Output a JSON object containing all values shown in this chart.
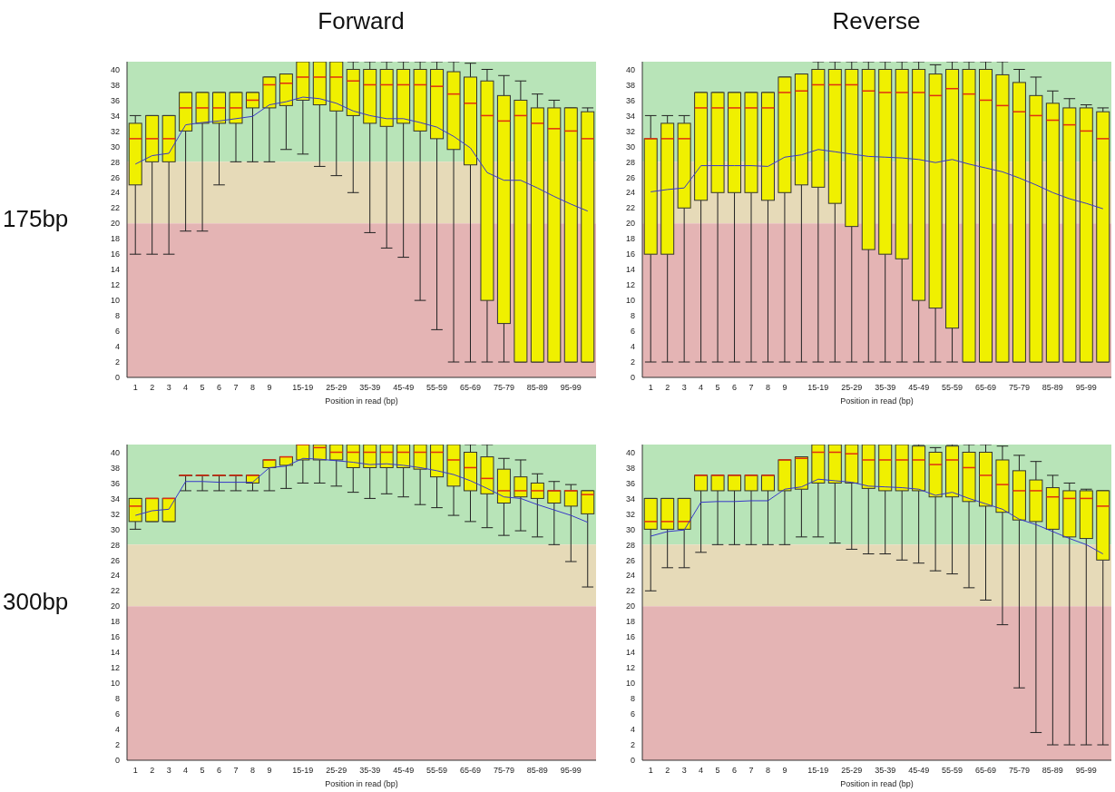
{
  "chart_data": [
    {
      "type": "box",
      "title": "Forward",
      "annotations": [
        "175bp"
      ],
      "xlabel": "Position in read (bp)",
      "categories": [
        "1",
        "2",
        "3",
        "4",
        "5",
        "6",
        "7",
        "8",
        "9",
        null,
        "15-19",
        null,
        "25-29",
        null,
        "35-39",
        null,
        "45-49",
        null,
        "55-59",
        null,
        "65-69",
        null,
        "75-79",
        null,
        "85-89",
        null,
        "95-99",
        null
      ],
      "ylim": [
        0,
        41
      ],
      "yticks": [
        0,
        2,
        4,
        6,
        8,
        10,
        12,
        14,
        16,
        18,
        20,
        22,
        24,
        26,
        28,
        30,
        32,
        34,
        36,
        38,
        40
      ],
      "bands": [
        {
          "axis": "y",
          "from": 28,
          "to": 41,
          "color": "#b8e4b8"
        },
        {
          "axis": "y",
          "from": 20,
          "to": 28,
          "color": "#e6dab8"
        },
        {
          "axis": "y",
          "from": 0,
          "to": 20,
          "color": "#e4b4b4"
        }
      ],
      "series": [
        {
          "type": "box",
          "color": "#f0f000",
          "boxes": [
            {
              "low": 16,
              "q1": 25,
              "median": 31,
              "q3": 33,
              "high": 34
            },
            {
              "low": 16,
              "q1": 28,
              "median": 31,
              "q3": 34,
              "high": 34
            },
            {
              "low": 16,
              "q1": 28,
              "median": 31,
              "q3": 34,
              "high": 34
            },
            {
              "low": 19,
              "q1": 32,
              "median": 35,
              "q3": 37,
              "high": 37
            },
            {
              "low": 19,
              "q1": 33,
              "median": 35,
              "q3": 37,
              "high": 37
            },
            {
              "low": 25,
              "q1": 33,
              "median": 35,
              "q3": 37,
              "high": 37
            },
            {
              "low": 28,
              "q1": 33,
              "median": 35,
              "q3": 37,
              "high": 37
            },
            {
              "low": 28,
              "q1": 35,
              "median": 36,
              "q3": 37,
              "high": 37
            },
            {
              "low": 28,
              "q1": 35,
              "median": 38,
              "q3": 39,
              "high": 39
            },
            {
              "low": 29.6,
              "q1": 35.3,
              "median": 38.2,
              "q3": 39.4,
              "high": 39.4
            },
            {
              "low": 29,
              "q1": 36,
              "median": 39,
              "q3": 41,
              "high": 41
            },
            {
              "low": 27.4,
              "q1": 35.4,
              "median": 39,
              "q3": 41,
              "high": 41
            },
            {
              "low": 26.2,
              "q1": 34.6,
              "median": 39,
              "q3": 41,
              "high": 41
            },
            {
              "low": 24,
              "q1": 34,
              "median": 38.5,
              "q3": 40,
              "high": 41
            },
            {
              "low": 18.8,
              "q1": 33,
              "median": 38,
              "q3": 40,
              "high": 41
            },
            {
              "low": 16.8,
              "q1": 32.6,
              "median": 38,
              "q3": 40,
              "high": 41
            },
            {
              "low": 15.6,
              "q1": 33,
              "median": 38,
              "q3": 40,
              "high": 41
            },
            {
              "low": 10,
              "q1": 32,
              "median": 38,
              "q3": 40,
              "high": 41
            },
            {
              "low": 6.2,
              "q1": 31,
              "median": 37.8,
              "q3": 40,
              "high": 41
            },
            {
              "low": 2,
              "q1": 29.6,
              "median": 36.8,
              "q3": 39.7,
              "high": 41
            },
            {
              "low": 2,
              "q1": 27.6,
              "median": 35.6,
              "q3": 39,
              "high": 40.8
            },
            {
              "low": 2,
              "q1": 10,
              "median": 34,
              "q3": 38.5,
              "high": 40
            },
            {
              "low": 2,
              "q1": 7,
              "median": 33.3,
              "q3": 36.6,
              "high": 39.2
            },
            {
              "low": 2,
              "q1": 2,
              "median": 34,
              "q3": 36,
              "high": 38.5
            },
            {
              "low": 2,
              "q1": 2,
              "median": 33,
              "q3": 35,
              "high": 36.8
            },
            {
              "low": 2,
              "q1": 2,
              "median": 32.3,
              "q3": 35,
              "high": 36
            },
            {
              "low": 2,
              "q1": 2,
              "median": 32,
              "q3": 35,
              "high": 35
            },
            {
              "low": 2,
              "q1": 2,
              "median": 31,
              "q3": 34.5,
              "high": 35
            }
          ]
        },
        {
          "type": "line",
          "color": "#3838c8",
          "values": [
            27.7,
            28.8,
            29.1,
            32.8,
            33.1,
            33.3,
            33.6,
            33.9,
            35.4,
            35.8,
            36.4,
            36.2,
            35.6,
            34.6,
            34.0,
            33.6,
            33.6,
            33.1,
            32.5,
            31.3,
            29.8,
            26.6,
            25.6,
            25.6,
            24.6,
            23.5,
            22.5,
            21.6
          ]
        }
      ]
    },
    {
      "type": "box",
      "title": "Reverse",
      "xlabel": "Position in read (bp)",
      "categories": [
        "1",
        "2",
        "3",
        "4",
        "5",
        "6",
        "7",
        "8",
        "9",
        null,
        "15-19",
        null,
        "25-29",
        null,
        "35-39",
        null,
        "45-49",
        null,
        "55-59",
        null,
        "65-69",
        null,
        "75-79",
        null,
        "85-89",
        null,
        "95-99",
        null
      ],
      "ylim": [
        0,
        41
      ],
      "yticks": [
        0,
        2,
        4,
        6,
        8,
        10,
        12,
        14,
        16,
        18,
        20,
        22,
        24,
        26,
        28,
        30,
        32,
        34,
        36,
        38,
        40
      ],
      "bands": [
        {
          "axis": "y",
          "from": 28,
          "to": 41,
          "color": "#b8e4b8"
        },
        {
          "axis": "y",
          "from": 20,
          "to": 28,
          "color": "#e6dab8"
        },
        {
          "axis": "y",
          "from": 0,
          "to": 20,
          "color": "#e4b4b4"
        }
      ],
      "series": [
        {
          "type": "box",
          "color": "#f0f000",
          "boxes": [
            {
              "low": 2,
              "q1": 16,
              "median": 31,
              "q3": 31,
              "high": 34
            },
            {
              "low": 2,
              "q1": 16,
              "median": 31,
              "q3": 33,
              "high": 34
            },
            {
              "low": 2,
              "q1": 22,
              "median": 31,
              "q3": 33,
              "high": 34
            },
            {
              "low": 2,
              "q1": 23,
              "median": 35,
              "q3": 37,
              "high": 37
            },
            {
              "low": 2,
              "q1": 24,
              "median": 35,
              "q3": 37,
              "high": 37
            },
            {
              "low": 2,
              "q1": 24,
              "median": 35,
              "q3": 37,
              "high": 37
            },
            {
              "low": 2,
              "q1": 24,
              "median": 35,
              "q3": 37,
              "high": 37
            },
            {
              "low": 2,
              "q1": 23,
              "median": 35,
              "q3": 37,
              "high": 37
            },
            {
              "low": 2,
              "q1": 24,
              "median": 37,
              "q3": 39,
              "high": 39
            },
            {
              "low": 2,
              "q1": 25,
              "median": 37.2,
              "q3": 39.4,
              "high": 39.4
            },
            {
              "low": 2,
              "q1": 24.7,
              "median": 38,
              "q3": 40,
              "high": 41
            },
            {
              "low": 2,
              "q1": 22.6,
              "median": 38,
              "q3": 40,
              "high": 41
            },
            {
              "low": 2,
              "q1": 19.6,
              "median": 38,
              "q3": 40,
              "high": 41
            },
            {
              "low": 2,
              "q1": 16.6,
              "median": 37.2,
              "q3": 40,
              "high": 41
            },
            {
              "low": 2,
              "q1": 16,
              "median": 37,
              "q3": 40,
              "high": 41
            },
            {
              "low": 2,
              "q1": 15.4,
              "median": 37,
              "q3": 40,
              "high": 41
            },
            {
              "low": 2,
              "q1": 10,
              "median": 37,
              "q3": 40,
              "high": 41
            },
            {
              "low": 2,
              "q1": 9,
              "median": 36.6,
              "q3": 39.4,
              "high": 40.6
            },
            {
              "low": 2,
              "q1": 6.4,
              "median": 37.5,
              "q3": 40,
              "high": 41
            },
            {
              "low": 2,
              "q1": 2,
              "median": 36.8,
              "q3": 40,
              "high": 41
            },
            {
              "low": 2,
              "q1": 2,
              "median": 36,
              "q3": 40,
              "high": 41
            },
            {
              "low": 2,
              "q1": 2,
              "median": 35.3,
              "q3": 39.3,
              "high": 41
            },
            {
              "low": 2,
              "q1": 2,
              "median": 34.5,
              "q3": 38.3,
              "high": 40
            },
            {
              "low": 2,
              "q1": 2,
              "median": 34,
              "q3": 36.6,
              "high": 39
            },
            {
              "low": 2,
              "q1": 2,
              "median": 33.4,
              "q3": 35.6,
              "high": 37.2
            },
            {
              "low": 2,
              "q1": 2,
              "median": 32.8,
              "q3": 35,
              "high": 36.2
            },
            {
              "low": 2,
              "q1": 2,
              "median": 32,
              "q3": 35,
              "high": 35.4
            },
            {
              "low": 2,
              "q1": 2,
              "median": 31,
              "q3": 34.5,
              "high": 35
            }
          ]
        },
        {
          "type": "line",
          "color": "#3838c8",
          "values": [
            24.1,
            24.4,
            24.6,
            27.5,
            27.5,
            27.5,
            27.5,
            27.4,
            28.6,
            28.9,
            29.6,
            29.3,
            29.0,
            28.7,
            28.6,
            28.5,
            28.3,
            27.9,
            28.3,
            27.7,
            27.2,
            26.7,
            25.9,
            25.0,
            24.0,
            23.2,
            22.6,
            21.9
          ]
        }
      ]
    },
    {
      "type": "box",
      "annotations": [
        "300bp"
      ],
      "xlabel": "Position in read (bp)",
      "categories": [
        "1",
        "2",
        "3",
        "4",
        "5",
        "6",
        "7",
        "8",
        "9",
        null,
        "15-19",
        null,
        "25-29",
        null,
        "35-39",
        null,
        "45-49",
        null,
        "55-59",
        null,
        "65-69",
        null,
        "75-79",
        null,
        "85-89",
        null,
        "95-99",
        null
      ],
      "ylim": [
        0,
        41
      ],
      "yticks": [
        0,
        2,
        4,
        6,
        8,
        10,
        12,
        14,
        16,
        18,
        20,
        22,
        24,
        26,
        28,
        30,
        32,
        34,
        36,
        38,
        40
      ],
      "bands": [
        {
          "axis": "y",
          "from": 28,
          "to": 41,
          "color": "#b8e4b8"
        },
        {
          "axis": "y",
          "from": 20,
          "to": 28,
          "color": "#e6dab8"
        },
        {
          "axis": "y",
          "from": 0,
          "to": 20,
          "color": "#e4b4b4"
        }
      ],
      "series": [
        {
          "type": "box",
          "color": "#f0f000",
          "boxes": [
            {
              "low": 30,
              "q1": 31,
              "median": 33,
              "q3": 34,
              "high": 34
            },
            {
              "low": 31,
              "q1": 31,
              "median": 34,
              "q3": 34,
              "high": 34
            },
            {
              "low": 31,
              "q1": 31,
              "median": 34,
              "q3": 34,
              "high": 34
            },
            {
              "low": 35,
              "q1": 37,
              "median": 37,
              "q3": 37,
              "high": 37
            },
            {
              "low": 35,
              "q1": 37,
              "median": 37,
              "q3": 37,
              "high": 37
            },
            {
              "low": 35,
              "q1": 37,
              "median": 37,
              "q3": 37,
              "high": 37
            },
            {
              "low": 35,
              "q1": 37,
              "median": 37,
              "q3": 37,
              "high": 37
            },
            {
              "low": 35,
              "q1": 36,
              "median": 37,
              "q3": 37,
              "high": 37
            },
            {
              "low": 35,
              "q1": 38,
              "median": 39,
              "q3": 39,
              "high": 39
            },
            {
              "low": 35.3,
              "q1": 38.3,
              "median": 39.4,
              "q3": 39.4,
              "high": 39.4
            },
            {
              "low": 36,
              "q1": 39,
              "median": 41,
              "q3": 41,
              "high": 41
            },
            {
              "low": 36,
              "q1": 39,
              "median": 40.6,
              "q3": 41,
              "high": 41
            },
            {
              "low": 35.6,
              "q1": 39,
              "median": 40,
              "q3": 41,
              "high": 41
            },
            {
              "low": 34.8,
              "q1": 38,
              "median": 40,
              "q3": 41,
              "high": 41
            },
            {
              "low": 34,
              "q1": 38,
              "median": 40,
              "q3": 41,
              "high": 41
            },
            {
              "low": 34.6,
              "q1": 38,
              "median": 40,
              "q3": 41,
              "high": 41
            },
            {
              "low": 34.2,
              "q1": 38,
              "median": 40,
              "q3": 41,
              "high": 41
            },
            {
              "low": 33.2,
              "q1": 37.8,
              "median": 40,
              "q3": 41,
              "high": 41
            },
            {
              "low": 32.8,
              "q1": 36.8,
              "median": 40,
              "q3": 41,
              "high": 41
            },
            {
              "low": 31.8,
              "q1": 35.6,
              "median": 39,
              "q3": 41,
              "high": 41
            },
            {
              "low": 31,
              "q1": 35,
              "median": 38,
              "q3": 40,
              "high": 41
            },
            {
              "low": 30.2,
              "q1": 34.6,
              "median": 36.6,
              "q3": 39.4,
              "high": 41
            },
            {
              "low": 29.2,
              "q1": 33.4,
              "median": 35,
              "q3": 37.8,
              "high": 39.2
            },
            {
              "low": 29.8,
              "q1": 34.2,
              "median": 35,
              "q3": 36.8,
              "high": 39
            },
            {
              "low": 29,
              "q1": 34,
              "median": 35,
              "q3": 36,
              "high": 37.2
            },
            {
              "low": 28,
              "q1": 33.4,
              "median": 35,
              "q3": 35,
              "high": 36.2
            },
            {
              "low": 25.8,
              "q1": 33,
              "median": 35,
              "q3": 35,
              "high": 35.8
            },
            {
              "low": 22.5,
              "q1": 32,
              "median": 34.5,
              "q3": 35,
              "high": 35
            }
          ]
        },
        {
          "type": "line",
          "color": "#3838c8",
          "values": [
            31.8,
            32.4,
            32.6,
            36.2,
            36.2,
            36.1,
            36.1,
            36.1,
            38.0,
            38.2,
            39.2,
            39.1,
            38.9,
            38.7,
            38.4,
            38.5,
            38.3,
            38.0,
            37.6,
            37.1,
            36.3,
            35.3,
            34.2,
            34.0,
            33.2,
            32.5,
            31.8,
            30.9
          ]
        }
      ]
    },
    {
      "type": "box",
      "xlabel": "Position in read (bp)",
      "categories": [
        "1",
        "2",
        "3",
        "4",
        "5",
        "6",
        "7",
        "8",
        "9",
        null,
        "15-19",
        null,
        "25-29",
        null,
        "35-39",
        null,
        "45-49",
        null,
        "55-59",
        null,
        "65-69",
        null,
        "75-79",
        null,
        "85-89",
        null,
        "95-99",
        null
      ],
      "ylim": [
        0,
        41
      ],
      "yticks": [
        0,
        2,
        4,
        6,
        8,
        10,
        12,
        14,
        16,
        18,
        20,
        22,
        24,
        26,
        28,
        30,
        32,
        34,
        36,
        38,
        40
      ],
      "bands": [
        {
          "axis": "y",
          "from": 28,
          "to": 41,
          "color": "#b8e4b8"
        },
        {
          "axis": "y",
          "from": 20,
          "to": 28,
          "color": "#e6dab8"
        },
        {
          "axis": "y",
          "from": 0,
          "to": 20,
          "color": "#e4b4b4"
        }
      ],
      "series": [
        {
          "type": "box",
          "color": "#f0f000",
          "boxes": [
            {
              "low": 22,
              "q1": 30,
              "median": 31,
              "q3": 34,
              "high": 34
            },
            {
              "low": 25,
              "q1": 30,
              "median": 31,
              "q3": 34,
              "high": 34
            },
            {
              "low": 25,
              "q1": 30,
              "median": 31,
              "q3": 34,
              "high": 34
            },
            {
              "low": 27,
              "q1": 35,
              "median": 37,
              "q3": 37,
              "high": 37
            },
            {
              "low": 28,
              "q1": 35,
              "median": 37,
              "q3": 37,
              "high": 37
            },
            {
              "low": 28,
              "q1": 35,
              "median": 37,
              "q3": 37,
              "high": 37
            },
            {
              "low": 28,
              "q1": 35,
              "median": 37,
              "q3": 37,
              "high": 37
            },
            {
              "low": 28,
              "q1": 35,
              "median": 37,
              "q3": 37,
              "high": 37
            },
            {
              "low": 28,
              "q1": 35,
              "median": 39,
              "q3": 39,
              "high": 39
            },
            {
              "low": 29,
              "q1": 35.2,
              "median": 39.2,
              "q3": 39.4,
              "high": 39.4
            },
            {
              "low": 29,
              "q1": 36,
              "median": 40,
              "q3": 41,
              "high": 41
            },
            {
              "low": 28.2,
              "q1": 36,
              "median": 40,
              "q3": 41,
              "high": 41
            },
            {
              "low": 27.4,
              "q1": 36,
              "median": 39.8,
              "q3": 41,
              "high": 41
            },
            {
              "low": 26.8,
              "q1": 35.3,
              "median": 39,
              "q3": 41,
              "high": 41
            },
            {
              "low": 26.8,
              "q1": 35,
              "median": 39,
              "q3": 41,
              "high": 41
            },
            {
              "low": 26,
              "q1": 35,
              "median": 39,
              "q3": 41,
              "high": 41
            },
            {
              "low": 25.6,
              "q1": 35,
              "median": 39,
              "q3": 40.8,
              "high": 41
            },
            {
              "low": 24.6,
              "q1": 34.2,
              "median": 38.4,
              "q3": 40,
              "high": 40.6
            },
            {
              "low": 24.2,
              "q1": 34.2,
              "median": 39,
              "q3": 40.8,
              "high": 41
            },
            {
              "low": 22.4,
              "q1": 33.6,
              "median": 38,
              "q3": 40,
              "high": 41
            },
            {
              "low": 20.8,
              "q1": 33,
              "median": 37,
              "q3": 40,
              "high": 41
            },
            {
              "low": 17.6,
              "q1": 32.2,
              "median": 35.8,
              "q3": 39,
              "high": 40.8
            },
            {
              "low": 9.4,
              "q1": 31.2,
              "median": 35,
              "q3": 37.6,
              "high": 39.6
            },
            {
              "low": 3.6,
              "q1": 31,
              "median": 35,
              "q3": 36.4,
              "high": 38.8
            },
            {
              "low": 2,
              "q1": 30,
              "median": 34.2,
              "q3": 35.4,
              "high": 37
            },
            {
              "low": 2,
              "q1": 29,
              "median": 34,
              "q3": 35,
              "high": 36
            },
            {
              "low": 2,
              "q1": 28.8,
              "median": 34,
              "q3": 35,
              "high": 35.2
            },
            {
              "low": 2,
              "q1": 26,
              "median": 33,
              "q3": 35,
              "high": 35
            }
          ]
        },
        {
          "type": "line",
          "color": "#3838c8",
          "values": [
            29.1,
            29.7,
            29.9,
            33.5,
            33.6,
            33.6,
            33.7,
            33.7,
            35.2,
            35.5,
            36.5,
            36.3,
            36.1,
            35.6,
            35.5,
            35.4,
            35.2,
            34.4,
            34.8,
            34.0,
            33.3,
            32.6,
            31.3,
            30.6,
            29.7,
            28.8,
            28.0,
            26.8
          ]
        }
      ]
    }
  ]
}
